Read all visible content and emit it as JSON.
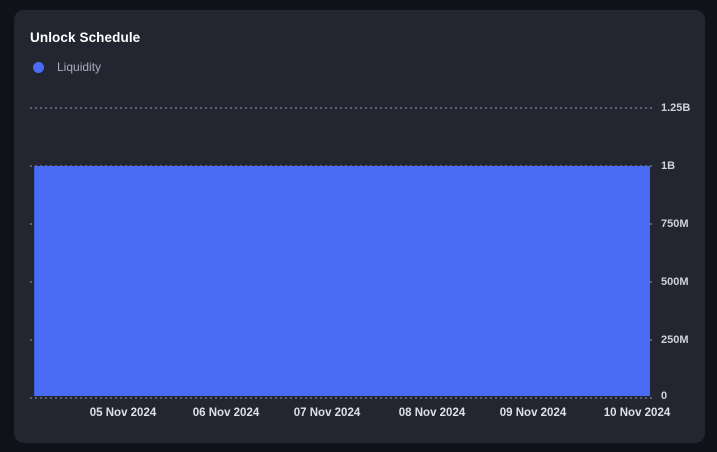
{
  "card": {
    "title": "Unlock Schedule",
    "legend": [
      {
        "label": "Liquidity",
        "color": "#4a6cf5"
      }
    ]
  },
  "chart_data": {
    "type": "area",
    "title": "Unlock Schedule",
    "x": [
      "05 Nov 2024",
      "06 Nov 2024",
      "07 Nov 2024",
      "08 Nov 2024",
      "09 Nov 2024",
      "10 Nov 2024"
    ],
    "series": [
      {
        "name": "Liquidity",
        "values": [
          1000000000,
          1000000000,
          1000000000,
          1000000000,
          1000000000,
          1000000000
        ],
        "color": "#4a6cf5",
        "style": "filled-flat"
      }
    ],
    "yticks": [
      "0",
      "250M",
      "500M",
      "750M",
      "1B",
      "1.25B"
    ],
    "ylim": [
      0,
      1250000000
    ],
    "grid": "dotted-horizontal",
    "gridline_color": "#5c6170",
    "legend_position": "top-left",
    "background": "#232531",
    "page_background": "#101119"
  }
}
